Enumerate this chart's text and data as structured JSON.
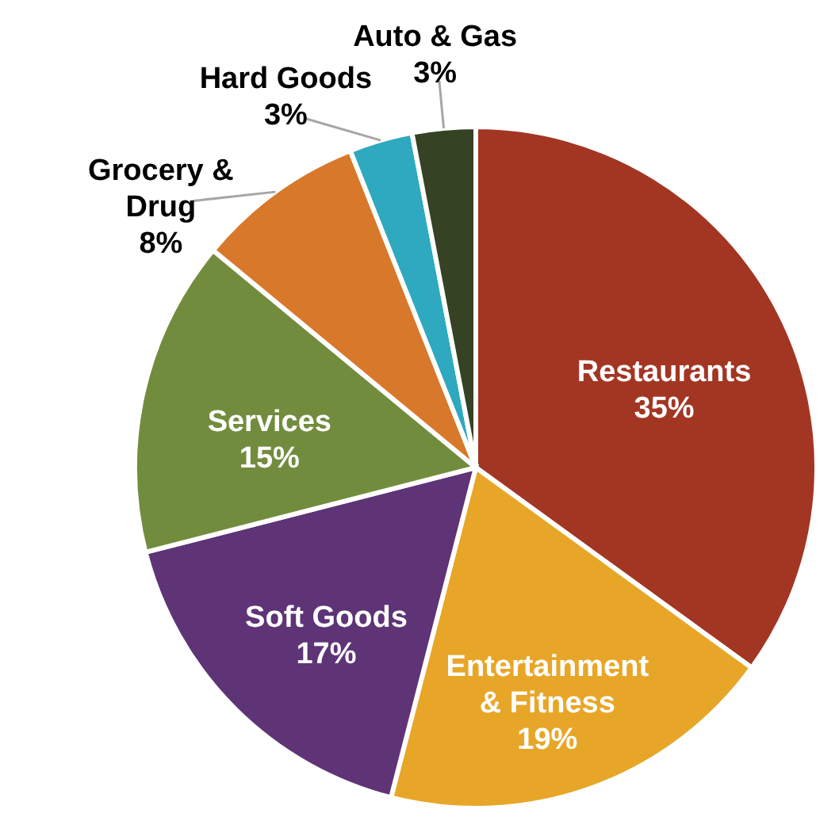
{
  "chart_data": {
    "type": "pie",
    "categories": [
      "Restaurants",
      "Entertainment & Fitness",
      "Soft Goods",
      "Services",
      "Grocery & Drug",
      "Hard Goods",
      "Auto & Gas"
    ],
    "values": [
      35,
      19,
      17,
      15,
      8,
      3,
      3
    ],
    "value_labels": [
      "35%",
      "19%",
      "17%",
      "15%",
      "8%",
      "3%",
      "3%"
    ],
    "colors": [
      "#a23623",
      "#e8a628",
      "#5e3476",
      "#728c3e",
      "#d8782a",
      "#2ea9bf",
      "#364224"
    ],
    "legend": false
  }
}
